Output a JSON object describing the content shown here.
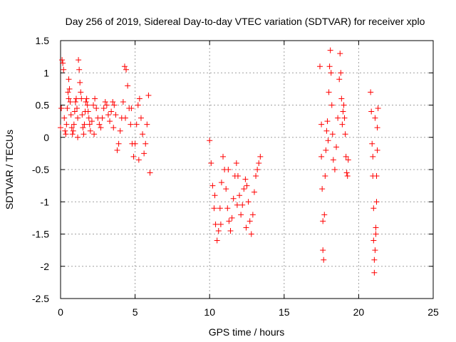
{
  "chart_data": {
    "type": "scatter",
    "title": "Day 256 of 2019, Sidereal Day-to-day VTEC variation (SDTVAR) for receiver xplo",
    "xlabel": "GPS time / hours",
    "ylabel": "SDTVAR / TECUs",
    "xlim": [
      0,
      25
    ],
    "ylim": [
      -2.5,
      1.5
    ],
    "xticks": [
      0,
      5,
      10,
      15,
      20,
      25
    ],
    "yticks": [
      -2.5,
      -2,
      -1.5,
      -1,
      -0.5,
      0,
      0.5,
      1,
      1.5
    ],
    "xtick_labels": [
      "0",
      "5",
      "10",
      "15",
      "20",
      "25"
    ],
    "ytick_labels": [
      "-2.5",
      "-2",
      "-1.5",
      "-1",
      "-0.5",
      "0",
      "0.5",
      "1",
      "1.5"
    ],
    "grid": true,
    "marker": "+",
    "color": "#ff0000",
    "series": [
      {
        "name": "SDTVAR",
        "points": [
          [
            0.0,
            0.15
          ],
          [
            0.05,
            0.45
          ],
          [
            0.1,
            1.2
          ],
          [
            0.15,
            1.15
          ],
          [
            0.2,
            1.05
          ],
          [
            0.25,
            0.3
          ],
          [
            0.3,
            0.1
          ],
          [
            0.35,
            0.05
          ],
          [
            0.4,
            0.2
          ],
          [
            0.45,
            0.45
          ],
          [
            0.5,
            0.7
          ],
          [
            0.55,
            0.9
          ],
          [
            0.6,
            0.75
          ],
          [
            0.65,
            0.55
          ],
          [
            0.7,
            0.35
          ],
          [
            0.75,
            0.15
          ],
          [
            0.8,
            0.05
          ],
          [
            0.85,
            0.1
          ],
          [
            0.9,
            0.2
          ],
          [
            0.95,
            0.4
          ],
          [
            1.0,
            0.55
          ],
          [
            1.05,
            0.6
          ],
          [
            1.1,
            0.45
          ],
          [
            1.15,
            0.3
          ],
          [
            1.2,
            1.2
          ],
          [
            1.25,
            1.05
          ],
          [
            1.3,
            0.85
          ],
          [
            1.35,
            0.7
          ],
          [
            1.4,
            0.6
          ],
          [
            1.45,
            0.35
          ],
          [
            1.5,
            0.15
          ],
          [
            1.55,
            0.05
          ],
          [
            1.6,
            0.2
          ],
          [
            1.65,
            0.4
          ],
          [
            1.7,
            0.55
          ],
          [
            1.75,
            0.6
          ],
          [
            1.8,
            0.5
          ],
          [
            1.85,
            0.4
          ],
          [
            1.9,
            0.3
          ],
          [
            1.95,
            0.2
          ],
          [
            2.0,
            0.1
          ],
          [
            2.1,
            0.25
          ],
          [
            2.2,
            0.5
          ],
          [
            2.3,
            0.6
          ],
          [
            2.4,
            0.45
          ],
          [
            2.5,
            0.3
          ],
          [
            2.6,
            0.2
          ],
          [
            2.7,
            0.15
          ],
          [
            2.8,
            0.3
          ],
          [
            2.9,
            0.45
          ],
          [
            3.0,
            0.55
          ],
          [
            3.1,
            0.5
          ],
          [
            3.2,
            0.35
          ],
          [
            3.3,
            0.25
          ],
          [
            3.4,
            0.4
          ],
          [
            3.5,
            0.55
          ],
          [
            3.6,
            0.5
          ],
          [
            3.7,
            0.35
          ],
          [
            3.8,
            -0.2
          ],
          [
            3.9,
            -0.1
          ],
          [
            4.0,
            0.1
          ],
          [
            4.1,
            0.3
          ],
          [
            4.2,
            0.55
          ],
          [
            4.3,
            1.1
          ],
          [
            4.4,
            1.05
          ],
          [
            4.5,
            0.8
          ],
          [
            4.6,
            0.45
          ],
          [
            4.7,
            0.2
          ],
          [
            4.8,
            -0.1
          ],
          [
            4.9,
            -0.3
          ],
          [
            5.0,
            -0.1
          ],
          [
            5.1,
            0.2
          ],
          [
            5.2,
            0.5
          ],
          [
            5.3,
            0.6
          ],
          [
            5.4,
            0.3
          ],
          [
            5.5,
            0.05
          ],
          [
            5.6,
            -0.25
          ],
          [
            5.7,
            -0.1
          ],
          [
            5.8,
            0.2
          ],
          [
            5.9,
            0.65
          ],
          [
            6.0,
            -0.55
          ],
          [
            4.35,
            0.3
          ],
          [
            4.75,
            0.45
          ],
          [
            5.25,
            -0.35
          ],
          [
            2.25,
            0.05
          ],
          [
            1.15,
            0.0
          ],
          [
            0.55,
            0.6
          ],
          [
            3.55,
            0.15
          ],
          [
            10.0,
            -0.05
          ],
          [
            10.1,
            -0.4
          ],
          [
            10.2,
            -0.75
          ],
          [
            10.3,
            -1.1
          ],
          [
            10.4,
            -1.35
          ],
          [
            10.5,
            -1.6
          ],
          [
            10.6,
            -1.45
          ],
          [
            10.7,
            -1.1
          ],
          [
            10.8,
            -0.7
          ],
          [
            10.9,
            -0.3
          ],
          [
            11.0,
            -0.5
          ],
          [
            11.1,
            -0.8
          ],
          [
            11.2,
            -1.1
          ],
          [
            11.3,
            -1.3
          ],
          [
            11.4,
            -1.45
          ],
          [
            11.5,
            -1.25
          ],
          [
            11.6,
            -0.95
          ],
          [
            11.7,
            -0.6
          ],
          [
            11.8,
            -0.4
          ],
          [
            11.9,
            -0.6
          ],
          [
            12.0,
            -0.9
          ],
          [
            12.1,
            -1.2
          ],
          [
            12.2,
            -1.05
          ],
          [
            12.3,
            -0.8
          ],
          [
            12.4,
            -0.65
          ],
          [
            12.5,
            -0.75
          ],
          [
            12.6,
            -1.0
          ],
          [
            12.7,
            -1.3
          ],
          [
            12.8,
            -1.5
          ],
          [
            12.9,
            -1.2
          ],
          [
            13.0,
            -0.85
          ],
          [
            13.1,
            -0.6
          ],
          [
            13.2,
            -0.5
          ],
          [
            13.3,
            -0.4
          ],
          [
            13.4,
            -0.3
          ],
          [
            10.35,
            -0.9
          ],
          [
            10.75,
            -1.35
          ],
          [
            11.25,
            -0.5
          ],
          [
            11.85,
            -1.05
          ],
          [
            12.45,
            -1.4
          ],
          [
            17.4,
            1.1
          ],
          [
            17.5,
            0.2
          ],
          [
            17.5,
            -0.3
          ],
          [
            17.55,
            -0.8
          ],
          [
            17.6,
            -1.3
          ],
          [
            17.6,
            -1.75
          ],
          [
            17.65,
            -1.9
          ],
          [
            17.7,
            -1.2
          ],
          [
            17.75,
            -0.6
          ],
          [
            17.8,
            -0.2
          ],
          [
            17.85,
            0.1
          ],
          [
            17.9,
            0.25
          ],
          [
            17.95,
            -0.05
          ],
          [
            18.0,
            0.7
          ],
          [
            18.05,
            1.1
          ],
          [
            18.1,
            1.35
          ],
          [
            18.15,
            1.0
          ],
          [
            18.2,
            0.5
          ],
          [
            18.25,
            0.05
          ],
          [
            18.3,
            -0.35
          ],
          [
            18.4,
            -0.5
          ],
          [
            18.5,
            -0.15
          ],
          [
            18.6,
            0.3
          ],
          [
            18.7,
            0.9
          ],
          [
            18.75,
            1.3
          ],
          [
            18.8,
            1.0
          ],
          [
            18.85,
            0.6
          ],
          [
            18.9,
            0.2
          ],
          [
            18.95,
            0.4
          ],
          [
            19.0,
            0.5
          ],
          [
            19.05,
            0.3
          ],
          [
            19.1,
            0.05
          ],
          [
            19.15,
            -0.3
          ],
          [
            19.2,
            -0.55
          ],
          [
            19.25,
            -0.6
          ],
          [
            19.3,
            -0.35
          ],
          [
            20.8,
            0.7
          ],
          [
            20.85,
            0.4
          ],
          [
            20.9,
            -0.1
          ],
          [
            20.95,
            -0.6
          ],
          [
            21.0,
            -1.1
          ],
          [
            21.0,
            -1.6
          ],
          [
            21.05,
            -1.9
          ],
          [
            21.05,
            -2.1
          ],
          [
            21.1,
            -1.75
          ],
          [
            21.15,
            -1.4
          ],
          [
            21.2,
            -1.0
          ],
          [
            21.2,
            -0.6
          ],
          [
            21.25,
            -0.2
          ],
          [
            21.25,
            0.15
          ],
          [
            21.3,
            0.45
          ],
          [
            21.1,
            0.3
          ],
          [
            21.15,
            -1.5
          ],
          [
            20.95,
            -0.3
          ]
        ]
      }
    ]
  }
}
